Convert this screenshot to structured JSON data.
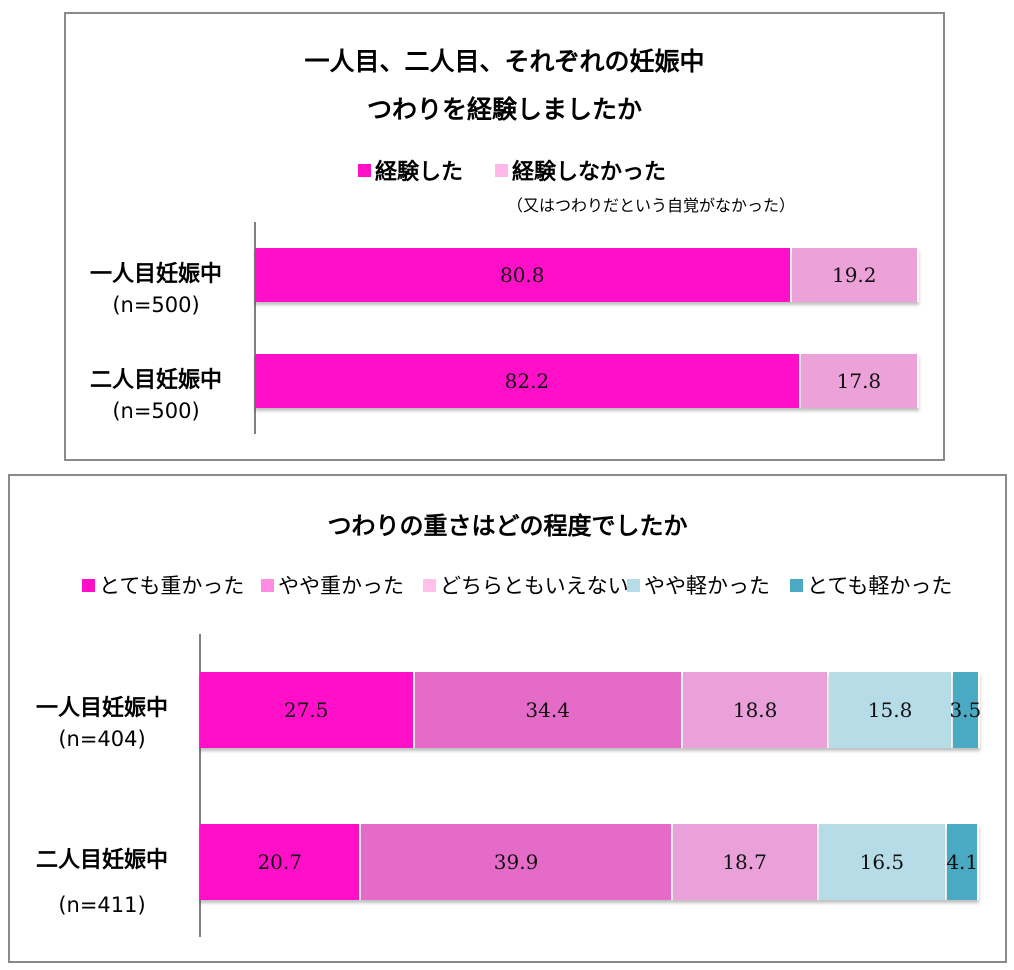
{
  "chart_data": [
    {
      "type": "bar",
      "orientation": "horizontal",
      "stacked": true,
      "title": [
        "一人目、二人目、それぞれの妊娠中",
        "つわりを経験しましたか"
      ],
      "legend": [
        {
          "name": "経験した",
          "color": "#ff10c8"
        },
        {
          "name": "経験しなかった",
          "note": "（又はつわりだという自覚がなかった）",
          "color": "#ffb8e8"
        }
      ],
      "categories": [
        {
          "name": "一人目妊娠中",
          "n": "(n=500)"
        },
        {
          "name": "二人目妊娠中",
          "n": "(n=500)"
        }
      ],
      "series": [
        {
          "name": "経験した",
          "values": [
            80.8,
            82.2
          ],
          "color": "#ff10c8"
        },
        {
          "name": "経験しなかった",
          "values": [
            19.2,
            17.8
          ],
          "color": "#eca2d8"
        }
      ],
      "xlim": [
        0,
        100
      ],
      "grid": false,
      "legend_position": "top"
    },
    {
      "type": "bar",
      "orientation": "horizontal",
      "stacked": true,
      "title": [
        "つわりの重さはどの程度でしたか"
      ],
      "legend": [
        {
          "name": "とても重かった",
          "color": "#ff10c8"
        },
        {
          "name": "やや重かった",
          "color": "#ff8ce0"
        },
        {
          "name": "どちらともいえない",
          "color": "#ffc0ec"
        },
        {
          "name": "やや軽かった",
          "color": "#b6dce8"
        },
        {
          "name": "とても軽かった",
          "color": "#4aaac4"
        }
      ],
      "categories": [
        {
          "name": "一人目妊娠中",
          "n": "(n=404)"
        },
        {
          "name": "二人目妊娠中",
          "n": "(n=411)"
        }
      ],
      "series": [
        {
          "name": "とても重かった",
          "values": [
            27.5,
            20.7
          ],
          "color": "#ff10c8"
        },
        {
          "name": "やや重かった",
          "values": [
            34.4,
            39.9
          ],
          "color": "#e46cc8"
        },
        {
          "name": "どちらともいえない",
          "values": [
            18.8,
            18.7
          ],
          "color": "#eaa0d8"
        },
        {
          "name": "やや軽かった",
          "values": [
            15.8,
            16.5
          ],
          "color": "#b6dce8"
        },
        {
          "name": "とても軽かった",
          "values": [
            3.5,
            4.1
          ],
          "color": "#4aaac4"
        }
      ],
      "xlim": [
        0,
        100
      ],
      "grid": false,
      "legend_position": "top"
    }
  ]
}
